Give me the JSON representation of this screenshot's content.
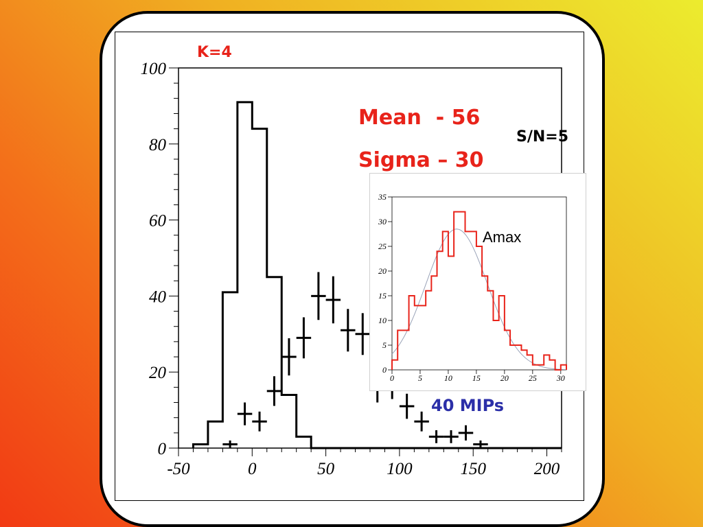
{
  "annotations": {
    "k_label": "K=4",
    "mean_label": "Mean  - 56",
    "sigma_label": "Sigma – 30",
    "sn_label": "S/N=5",
    "mips_label": "40 MIPs",
    "inset_label": "Amax"
  },
  "colors": {
    "red_text": "#e8231a",
    "blue_text": "#2b2fa8",
    "inset_hist": "#e8231a",
    "inset_fit": "#9aa3b8"
  },
  "chart_data": [
    {
      "type": "histogram+errorbars",
      "xlim": [
        -50,
        210
      ],
      "ylim": [
        0,
        100
      ],
      "x_ticks": [
        -50,
        0,
        50,
        100,
        150,
        200
      ],
      "y_ticks": [
        0,
        20,
        40,
        60,
        80,
        100
      ],
      "histogram": {
        "bin_width": 10,
        "bins": [
          {
            "lo": -40,
            "hi": -30,
            "count": 1
          },
          {
            "lo": -30,
            "hi": -20,
            "count": 7
          },
          {
            "lo": -20,
            "hi": -10,
            "count": 41
          },
          {
            "lo": -10,
            "hi": 0,
            "count": 91
          },
          {
            "lo": 0,
            "hi": 10,
            "count": 84
          },
          {
            "lo": 10,
            "hi": 20,
            "count": 45
          },
          {
            "lo": 20,
            "hi": 30,
            "count": 14
          },
          {
            "lo": 30,
            "hi": 40,
            "count": 3
          },
          {
            "lo": 40,
            "hi": 50,
            "count": 0
          }
        ]
      },
      "errorbar_points": [
        {
          "x": -15,
          "y": 1,
          "err": 1
        },
        {
          "x": -5,
          "y": 9,
          "err": 3
        },
        {
          "x": 5,
          "y": 7,
          "err": 2.6
        },
        {
          "x": 15,
          "y": 15,
          "err": 3.9
        },
        {
          "x": 25,
          "y": 24,
          "err": 4.9
        },
        {
          "x": 35,
          "y": 29,
          "err": 5.4
        },
        {
          "x": 45,
          "y": 40,
          "err": 6.3
        },
        {
          "x": 55,
          "y": 39,
          "err": 6.2
        },
        {
          "x": 65,
          "y": 31,
          "err": 5.6
        },
        {
          "x": 75,
          "y": 30,
          "err": 5.5
        },
        {
          "x": 85,
          "y": 16,
          "err": 4
        },
        {
          "x": 95,
          "y": 17,
          "err": 4.1
        },
        {
          "x": 105,
          "y": 11,
          "err": 3.3
        },
        {
          "x": 115,
          "y": 7,
          "err": 2.6
        },
        {
          "x": 125,
          "y": 3,
          "err": 1.7
        },
        {
          "x": 135,
          "y": 3,
          "err": 1.7
        },
        {
          "x": 145,
          "y": 4,
          "err": 2
        },
        {
          "x": 155,
          "y": 1,
          "err": 1
        }
      ]
    },
    {
      "type": "histogram+fit",
      "label": "Amax",
      "xlim": [
        0,
        31
      ],
      "ylim": [
        0,
        35
      ],
      "x_ticks": [
        0,
        5,
        10,
        15,
        20,
        25,
        30
      ],
      "y_ticks": [
        0,
        5,
        10,
        15,
        20,
        25,
        30,
        35
      ],
      "bin_width": 1,
      "bin_start": 0,
      "counts": [
        2,
        8,
        8,
        15,
        13,
        13,
        16,
        19,
        24,
        28,
        23,
        32,
        32,
        28,
        28,
        25,
        19,
        16,
        10,
        15,
        8,
        5,
        5,
        4,
        3,
        1,
        1,
        3,
        2,
        0,
        1
      ],
      "fit": {
        "mean": 11.5,
        "sigma": 5.5,
        "amplitude": 28.5
      }
    }
  ]
}
